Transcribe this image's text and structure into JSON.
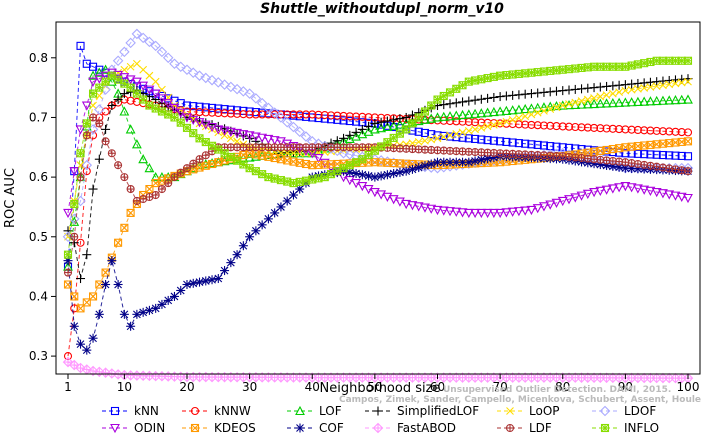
{
  "chart_data": {
    "type": "line",
    "title": "Shuttle_withoutdupl_norm_v10",
    "xlabel": "Neighborhood size",
    "ylabel": "ROC AUC",
    "xlim": [
      0,
      100
    ],
    "ylim": [
      0.27,
      0.86
    ],
    "xticks": [
      1,
      10,
      20,
      30,
      40,
      50,
      60,
      70,
      80,
      90,
      100
    ],
    "yticks": [
      0.3,
      0.4,
      0.5,
      0.6,
      0.7,
      0.8
    ],
    "watermark": "Campos, Zimek, Sander, Campello, Micenkova, Schubert, Assent, Houle",
    "watermark_prefix": "Unsupervised Outlier Detection. DAMI, 2015.",
    "legend_position": "bottom",
    "series": [
      {
        "name": "kNN",
        "color": "#0000ff",
        "marker": "square",
        "dash": "4,3",
        "knots": [
          [
            1,
            0.45
          ],
          [
            2,
            0.61
          ],
          [
            3,
            0.82
          ],
          [
            4,
            0.79
          ],
          [
            6,
            0.78
          ],
          [
            10,
            0.76
          ],
          [
            20,
            0.72
          ],
          [
            30,
            0.71
          ],
          [
            40,
            0.7
          ],
          [
            50,
            0.69
          ],
          [
            60,
            0.67
          ],
          [
            70,
            0.66
          ],
          [
            80,
            0.65
          ],
          [
            90,
            0.64
          ],
          [
            100,
            0.635
          ]
        ]
      },
      {
        "name": "kNNW",
        "color": "#ff0000",
        "marker": "circle",
        "dash": "4,3",
        "knots": [
          [
            1,
            0.3
          ],
          [
            2,
            0.38
          ],
          [
            3,
            0.49
          ],
          [
            4,
            0.61
          ],
          [
            5,
            0.67
          ],
          [
            6,
            0.7
          ],
          [
            8,
            0.72
          ],
          [
            10,
            0.73
          ],
          [
            20,
            0.71
          ],
          [
            30,
            0.705
          ],
          [
            40,
            0.705
          ],
          [
            50,
            0.7
          ],
          [
            60,
            0.695
          ],
          [
            70,
            0.69
          ],
          [
            80,
            0.685
          ],
          [
            90,
            0.68
          ],
          [
            100,
            0.675
          ]
        ]
      },
      {
        "name": "LOF",
        "color": "#00cc00",
        "marker": "triangle",
        "dash": "4,3",
        "knots": [
          [
            1,
            0.45
          ],
          [
            3,
            0.6
          ],
          [
            5,
            0.77
          ],
          [
            7,
            0.78
          ],
          [
            9,
            0.74
          ],
          [
            11,
            0.68
          ],
          [
            13,
            0.63
          ],
          [
            15,
            0.6
          ],
          [
            18,
            0.6
          ],
          [
            22,
            0.62
          ],
          [
            28,
            0.63
          ],
          [
            35,
            0.64
          ],
          [
            40,
            0.64
          ],
          [
            45,
            0.66
          ],
          [
            50,
            0.68
          ],
          [
            60,
            0.7
          ],
          [
            70,
            0.71
          ],
          [
            80,
            0.72
          ],
          [
            90,
            0.725
          ],
          [
            100,
            0.73
          ]
        ]
      },
      {
        "name": "SimplifiedLOF",
        "color": "#000000",
        "marker": "plus",
        "dash": "4,3",
        "knots": [
          [
            1,
            0.51
          ],
          [
            2,
            0.49
          ],
          [
            3,
            0.43
          ],
          [
            4,
            0.47
          ],
          [
            5,
            0.58
          ],
          [
            6,
            0.63
          ],
          [
            7,
            0.68
          ],
          [
            8,
            0.72
          ],
          [
            10,
            0.74
          ],
          [
            12,
            0.745
          ],
          [
            15,
            0.73
          ],
          [
            20,
            0.7
          ],
          [
            25,
            0.685
          ],
          [
            30,
            0.665
          ],
          [
            35,
            0.64
          ],
          [
            40,
            0.645
          ],
          [
            45,
            0.665
          ],
          [
            50,
            0.69
          ],
          [
            55,
            0.7
          ],
          [
            60,
            0.72
          ],
          [
            70,
            0.735
          ],
          [
            80,
            0.745
          ],
          [
            90,
            0.755
          ],
          [
            100,
            0.765
          ]
        ]
      },
      {
        "name": "LoOP",
        "color": "#ffdd00",
        "marker": "x",
        "dash": "4,3",
        "knots": [
          [
            1,
            0.5
          ],
          [
            3,
            0.62
          ],
          [
            5,
            0.72
          ],
          [
            8,
            0.77
          ],
          [
            12,
            0.79
          ],
          [
            15,
            0.76
          ],
          [
            18,
            0.72
          ],
          [
            22,
            0.69
          ],
          [
            26,
            0.67
          ],
          [
            30,
            0.65
          ],
          [
            35,
            0.64
          ],
          [
            40,
            0.64
          ],
          [
            45,
            0.645
          ],
          [
            50,
            0.65
          ],
          [
            55,
            0.655
          ],
          [
            60,
            0.665
          ],
          [
            70,
            0.69
          ],
          [
            80,
            0.72
          ],
          [
            90,
            0.745
          ],
          [
            100,
            0.76
          ]
        ]
      },
      {
        "name": "LDOF",
        "color": "#aaaaff",
        "marker": "diamond",
        "dash": "4,3",
        "knots": [
          [
            1,
            0.5
          ],
          [
            3,
            0.56
          ],
          [
            5,
            0.68
          ],
          [
            8,
            0.78
          ],
          [
            12,
            0.84
          ],
          [
            15,
            0.82
          ],
          [
            18,
            0.79
          ],
          [
            22,
            0.77
          ],
          [
            26,
            0.755
          ],
          [
            30,
            0.74
          ],
          [
            35,
            0.7
          ],
          [
            40,
            0.66
          ],
          [
            45,
            0.64
          ],
          [
            50,
            0.63
          ],
          [
            55,
            0.62
          ],
          [
            60,
            0.615
          ],
          [
            70,
            0.63
          ],
          [
            80,
            0.64
          ],
          [
            90,
            0.615
          ],
          [
            100,
            0.615
          ]
        ]
      },
      {
        "name": "ODIN",
        "color": "#aa00dd",
        "marker": "tridown",
        "dash": "4,3",
        "knots": [
          [
            1,
            0.54
          ],
          [
            3,
            0.68
          ],
          [
            5,
            0.76
          ],
          [
            8,
            0.775
          ],
          [
            12,
            0.76
          ],
          [
            15,
            0.74
          ],
          [
            20,
            0.7
          ],
          [
            25,
            0.68
          ],
          [
            30,
            0.67
          ],
          [
            35,
            0.66
          ],
          [
            40,
            0.64
          ],
          [
            45,
            0.6
          ],
          [
            50,
            0.575
          ],
          [
            55,
            0.555
          ],
          [
            60,
            0.545
          ],
          [
            65,
            0.54
          ],
          [
            70,
            0.54
          ],
          [
            75,
            0.545
          ],
          [
            80,
            0.56
          ],
          [
            85,
            0.575
          ],
          [
            90,
            0.585
          ],
          [
            95,
            0.575
          ],
          [
            100,
            0.565
          ]
        ]
      },
      {
        "name": "KDEOS",
        "color": "#ff9900",
        "marker": "squarex",
        "dash": "4,3",
        "knots": [
          [
            1,
            0.42
          ],
          [
            3,
            0.38
          ],
          [
            5,
            0.4
          ],
          [
            7,
            0.44
          ],
          [
            9,
            0.49
          ],
          [
            11,
            0.54
          ],
          [
            13,
            0.57
          ],
          [
            15,
            0.59
          ],
          [
            20,
            0.61
          ],
          [
            25,
            0.625
          ],
          [
            30,
            0.64
          ],
          [
            40,
            0.62
          ],
          [
            50,
            0.625
          ],
          [
            60,
            0.62
          ],
          [
            70,
            0.625
          ],
          [
            80,
            0.635
          ],
          [
            90,
            0.65
          ],
          [
            100,
            0.66
          ]
        ]
      },
      {
        "name": "COF",
        "color": "#000088",
        "marker": "star",
        "dash": "4,3",
        "knots": [
          [
            1,
            0.46
          ],
          [
            2,
            0.35
          ],
          [
            3,
            0.32
          ],
          [
            4,
            0.31
          ],
          [
            5,
            0.33
          ],
          [
            6,
            0.37
          ],
          [
            7,
            0.42
          ],
          [
            8,
            0.46
          ],
          [
            9,
            0.42
          ],
          [
            10,
            0.37
          ],
          [
            11,
            0.35
          ],
          [
            12,
            0.37
          ],
          [
            15,
            0.38
          ],
          [
            18,
            0.4
          ],
          [
            20,
            0.42
          ],
          [
            25,
            0.43
          ],
          [
            28,
            0.47
          ],
          [
            30,
            0.5
          ],
          [
            35,
            0.55
          ],
          [
            38,
            0.58
          ],
          [
            40,
            0.6
          ],
          [
            45,
            0.61
          ],
          [
            50,
            0.6
          ],
          [
            55,
            0.61
          ],
          [
            60,
            0.625
          ],
          [
            65,
            0.625
          ],
          [
            70,
            0.635
          ],
          [
            80,
            0.63
          ],
          [
            90,
            0.615
          ],
          [
            100,
            0.61
          ]
        ]
      },
      {
        "name": "FastABOD",
        "color": "#ff99ff",
        "marker": "diamondplus",
        "dash": "4,3",
        "knots": [
          [
            1,
            0.29
          ],
          [
            3,
            0.28
          ],
          [
            5,
            0.275
          ],
          [
            10,
            0.268
          ],
          [
            20,
            0.265
          ],
          [
            40,
            0.264
          ],
          [
            60,
            0.264
          ],
          [
            80,
            0.264
          ],
          [
            100,
            0.263
          ]
        ]
      },
      {
        "name": "LDF",
        "color": "#aa3333",
        "marker": "circleplus",
        "dash": "4,3",
        "knots": [
          [
            1,
            0.44
          ],
          [
            2,
            0.5
          ],
          [
            3,
            0.6
          ],
          [
            4,
            0.67
          ],
          [
            5,
            0.7
          ],
          [
            6,
            0.69
          ],
          [
            7,
            0.66
          ],
          [
            8,
            0.64
          ],
          [
            10,
            0.6
          ],
          [
            12,
            0.56
          ],
          [
            15,
            0.57
          ],
          [
            18,
            0.6
          ],
          [
            22,
            0.63
          ],
          [
            25,
            0.65
          ],
          [
            30,
            0.65
          ],
          [
            35,
            0.65
          ],
          [
            40,
            0.65
          ],
          [
            45,
            0.65
          ],
          [
            50,
            0.65
          ],
          [
            60,
            0.645
          ],
          [
            70,
            0.64
          ],
          [
            80,
            0.635
          ],
          [
            90,
            0.625
          ],
          [
            100,
            0.61
          ]
        ]
      },
      {
        "name": "INFLO",
        "color": "#88dd00",
        "marker": "starbox",
        "dash": "4,3",
        "knots": [
          [
            1,
            0.47
          ],
          [
            3,
            0.64
          ],
          [
            5,
            0.74
          ],
          [
            8,
            0.77
          ],
          [
            11,
            0.75
          ],
          [
            14,
            0.72
          ],
          [
            18,
            0.7
          ],
          [
            22,
            0.665
          ],
          [
            26,
            0.64
          ],
          [
            30,
            0.615
          ],
          [
            33,
            0.6
          ],
          [
            37,
            0.59
          ],
          [
            42,
            0.6
          ],
          [
            48,
            0.63
          ],
          [
            55,
            0.68
          ],
          [
            60,
            0.73
          ],
          [
            65,
            0.76
          ],
          [
            70,
            0.77
          ],
          [
            75,
            0.775
          ],
          [
            80,
            0.78
          ],
          [
            85,
            0.785
          ],
          [
            90,
            0.785
          ],
          [
            95,
            0.795
          ],
          [
            100,
            0.795
          ]
        ]
      }
    ]
  }
}
